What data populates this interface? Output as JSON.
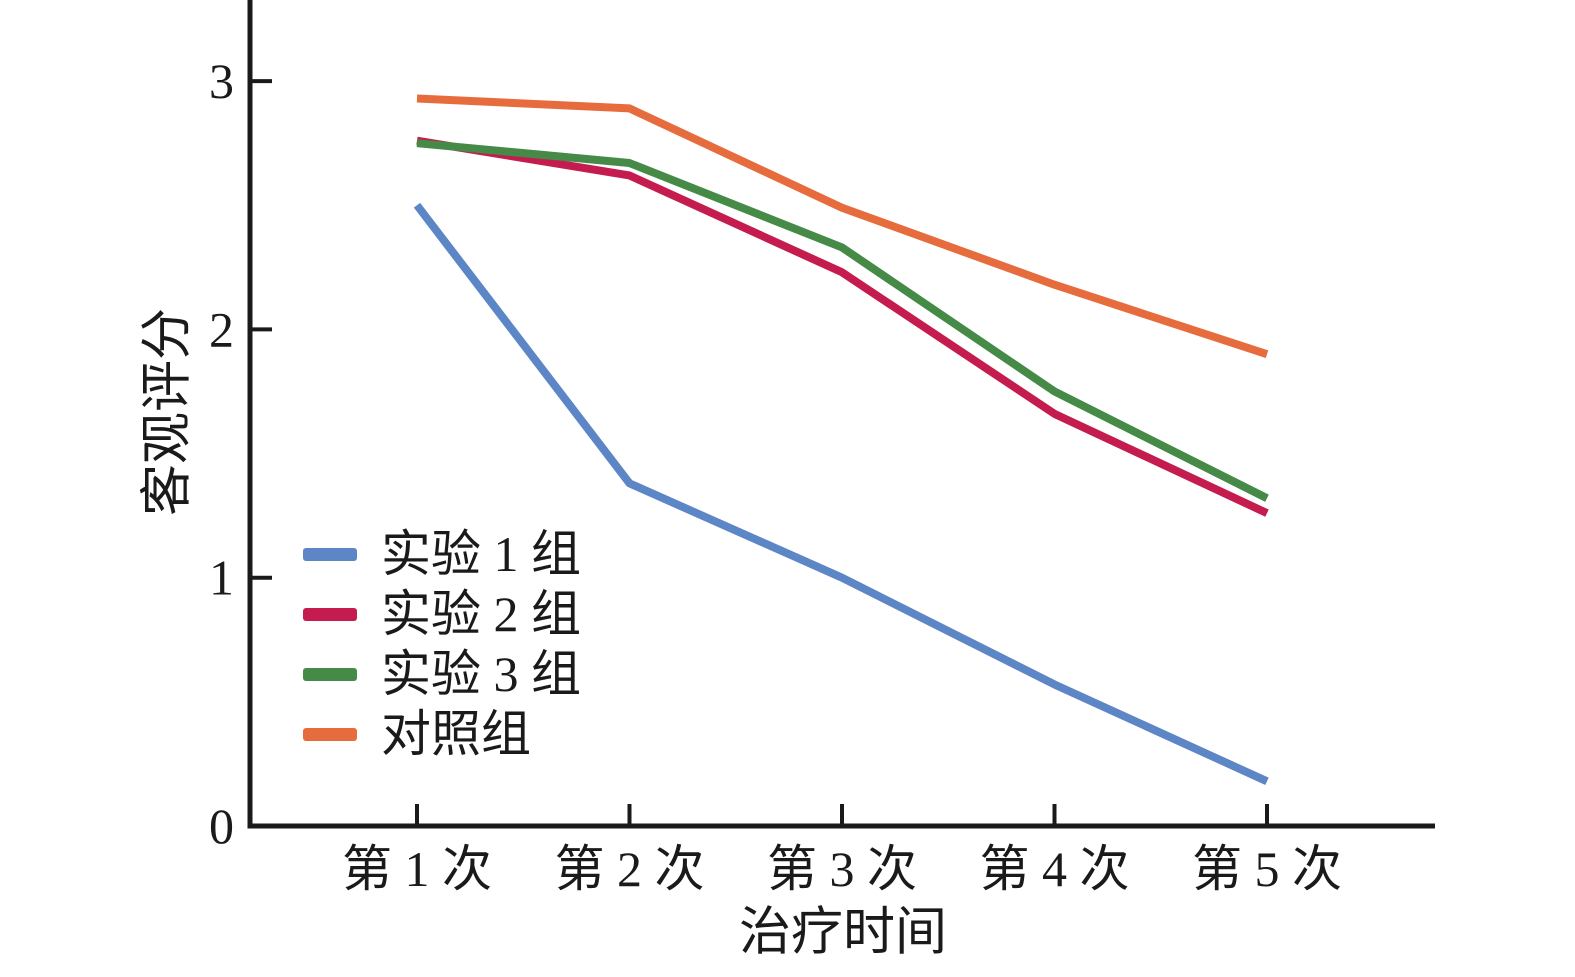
{
  "chart_data": {
    "type": "line",
    "title": "",
    "xlabel": "治疗时间",
    "ylabel": "客观评分",
    "categories": [
      "第 1 次",
      "第 2 次",
      "第 3 次",
      "第 4 次",
      "第 5 次"
    ],
    "y_ticks": [
      0,
      1,
      2,
      3
    ],
    "ylim": [
      0,
      3.33
    ],
    "grid": false,
    "legend_position": "inside-left-middle",
    "axis_color": "#1a1a1a",
    "series": [
      {
        "name": "实验 1 组",
        "color": "#5C86C5",
        "values": [
          2.5,
          1.38,
          1.0,
          0.57,
          0.18
        ]
      },
      {
        "name": "实验 2 组",
        "color": "#C41C4E",
        "values": [
          2.76,
          2.62,
          2.23,
          1.66,
          1.26
        ]
      },
      {
        "name": "实验 3 组",
        "color": "#458B47",
        "values": [
          2.75,
          2.67,
          2.33,
          1.75,
          1.32
        ]
      },
      {
        "name": "对照组",
        "color": "#E76C3D",
        "values": [
          2.93,
          2.89,
          2.49,
          2.18,
          1.9
        ]
      }
    ]
  }
}
